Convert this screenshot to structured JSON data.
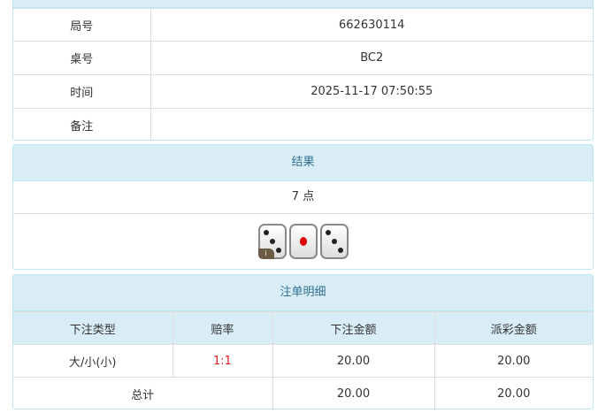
{
  "info": {
    "rows": [
      {
        "label": "局号",
        "value": "662630114"
      },
      {
        "label": "桌号",
        "value": "BC2"
      },
      {
        "label": "时间",
        "value": "2025-11-17 07:50:55"
      },
      {
        "label": "备注",
        "value": ""
      }
    ]
  },
  "result": {
    "title": "结果",
    "points": "7 点",
    "dice": [
      3,
      1,
      3
    ],
    "info_badge": "i"
  },
  "bets": {
    "title": "注单明细",
    "headers": [
      "下注类型",
      "赔率",
      "下注金额",
      "派彩金额"
    ],
    "rows": [
      {
        "type": "大/小(小)",
        "odds": "1:1",
        "amount": "20.00",
        "payout": "20.00"
      }
    ],
    "total": {
      "label": "总计",
      "amount": "20.00",
      "payout": "20.00"
    },
    "odds_color": "#e02020"
  }
}
